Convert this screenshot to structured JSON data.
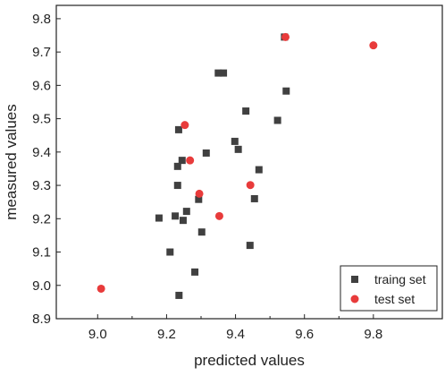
{
  "chart_data": {
    "type": "scatter",
    "title": "",
    "xlabel": "predicted values",
    "ylabel": "measured values",
    "xlim": [
      8.88,
      10.0
    ],
    "ylim": [
      8.9,
      9.84
    ],
    "x_ticks": [
      "9.0",
      "9.2",
      "9.4",
      "9.6",
      "9.8"
    ],
    "y_ticks": [
      "8.9",
      "9.0",
      "9.1",
      "9.2",
      "9.3",
      "9.4",
      "9.5",
      "9.6",
      "9.7",
      "9.8"
    ],
    "legend_position": "bottom-right",
    "grid": false,
    "series": [
      {
        "name": "traing set",
        "marker": "square",
        "color": "#404040",
        "points": [
          [
            9.235,
            9.467
          ],
          [
            9.232,
            9.357
          ],
          [
            9.245,
            9.375
          ],
          [
            9.315,
            9.397
          ],
          [
            9.232,
            9.3
          ],
          [
            9.178,
            9.202
          ],
          [
            9.225,
            9.208
          ],
          [
            9.258,
            9.222
          ],
          [
            9.248,
            9.195
          ],
          [
            9.293,
            9.258
          ],
          [
            9.302,
            9.16
          ],
          [
            9.21,
            9.1
          ],
          [
            9.282,
            9.04
          ],
          [
            9.236,
            8.97
          ],
          [
            9.35,
            9.637
          ],
          [
            9.365,
            9.637
          ],
          [
            9.43,
            9.523
          ],
          [
            9.398,
            9.432
          ],
          [
            9.408,
            9.408
          ],
          [
            9.468,
            9.347
          ],
          [
            9.455,
            9.26
          ],
          [
            9.442,
            9.12
          ],
          [
            9.522,
            9.495
          ],
          [
            9.547,
            9.583
          ],
          [
            9.542,
            9.745
          ]
        ]
      },
      {
        "name": "test set",
        "marker": "circle",
        "color": "#e83b3b",
        "points": [
          [
            9.253,
            9.481
          ],
          [
            9.268,
            9.375
          ],
          [
            9.295,
            9.275
          ],
          [
            9.353,
            9.208
          ],
          [
            9.443,
            9.301
          ],
          [
            9.01,
            8.99
          ],
          [
            9.545,
            9.745
          ],
          [
            9.8,
            9.72
          ]
        ]
      }
    ]
  }
}
